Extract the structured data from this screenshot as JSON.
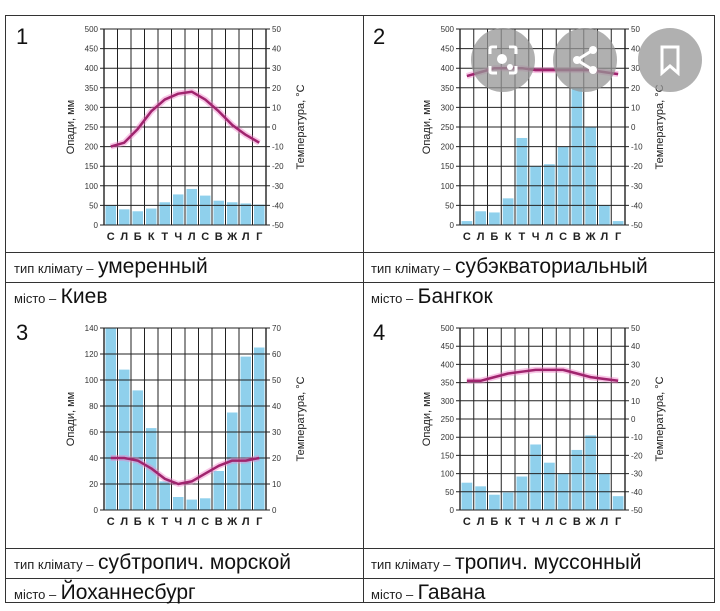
{
  "labels": {
    "climate_type": "тип клімату –",
    "city": "місто –"
  },
  "months": [
    "С",
    "Л",
    "Б",
    "К",
    "Т",
    "Ч",
    "Л",
    "С",
    "В",
    "Ж",
    "Л",
    "Г"
  ],
  "chart_data": [
    {
      "type": "bar+line",
      "number": "1",
      "ylabel": "Опади, мм",
      "y2label": "Температура, °С",
      "ylim": [
        0,
        500
      ],
      "ystep": 50,
      "y2lim": [
        -50,
        50
      ],
      "y2step": 10,
      "precip": [
        50,
        40,
        35,
        42,
        58,
        78,
        92,
        75,
        62,
        58,
        55,
        52
      ],
      "temp": [
        -10,
        -8,
        -1,
        8,
        14,
        17,
        18,
        14,
        8,
        1,
        -4,
        -8
      ],
      "climate": "умеренный",
      "city": "Киев"
    },
    {
      "type": "bar+line",
      "number": "2",
      "ylabel": "Опади, мм",
      "y2label": "Температура, °С",
      "ylim": [
        0,
        500
      ],
      "ystep": 50,
      "y2lim": [
        -50,
        50
      ],
      "y2step": 10,
      "precip": [
        10,
        35,
        32,
        68,
        222,
        150,
        155,
        200,
        350,
        250,
        50,
        10
      ],
      "temp": [
        26,
        28,
        30,
        30,
        30,
        29,
        29,
        29,
        29,
        29,
        28,
        27
      ],
      "climate": "субэкваториальный",
      "city": "Бангкок"
    },
    {
      "type": "bar+line",
      "number": "3",
      "ylabel": "Опади, мм",
      "y2label": "Температура, °С",
      "ylim": [
        0,
        140
      ],
      "ystep": 20,
      "y2lim": [
        0,
        70
      ],
      "y2step": 10,
      "precip": [
        140,
        108,
        92,
        63,
        22,
        10,
        8,
        9,
        30,
        75,
        118,
        125
      ],
      "temp": [
        20,
        20,
        19,
        16,
        12,
        10,
        11,
        14,
        17,
        19,
        19,
        20
      ],
      "climate": "субтропич. морской",
      "city": "Йоханнесбург"
    },
    {
      "type": "bar+line",
      "number": "4",
      "ylabel": "Опади, мм",
      "y2label": "Температура, °С",
      "ylim": [
        0,
        500
      ],
      "ystep": 50,
      "y2lim": [
        -50,
        50
      ],
      "y2step": 10,
      "precip": [
        75,
        65,
        42,
        48,
        92,
        180,
        130,
        100,
        165,
        205,
        100,
        38
      ],
      "temp": [
        21,
        21,
        23,
        25,
        26,
        27,
        27,
        27,
        25,
        23,
        22,
        21
      ],
      "climate": "тропич. муссонный",
      "city": "Гавана"
    }
  ],
  "colors": {
    "bar": "#8fd0ec",
    "line": "#a0246e",
    "glow": "#f080c8",
    "grid": "#222"
  },
  "overlay": [
    "lens-icon",
    "share-icon",
    "bookmark-icon"
  ]
}
